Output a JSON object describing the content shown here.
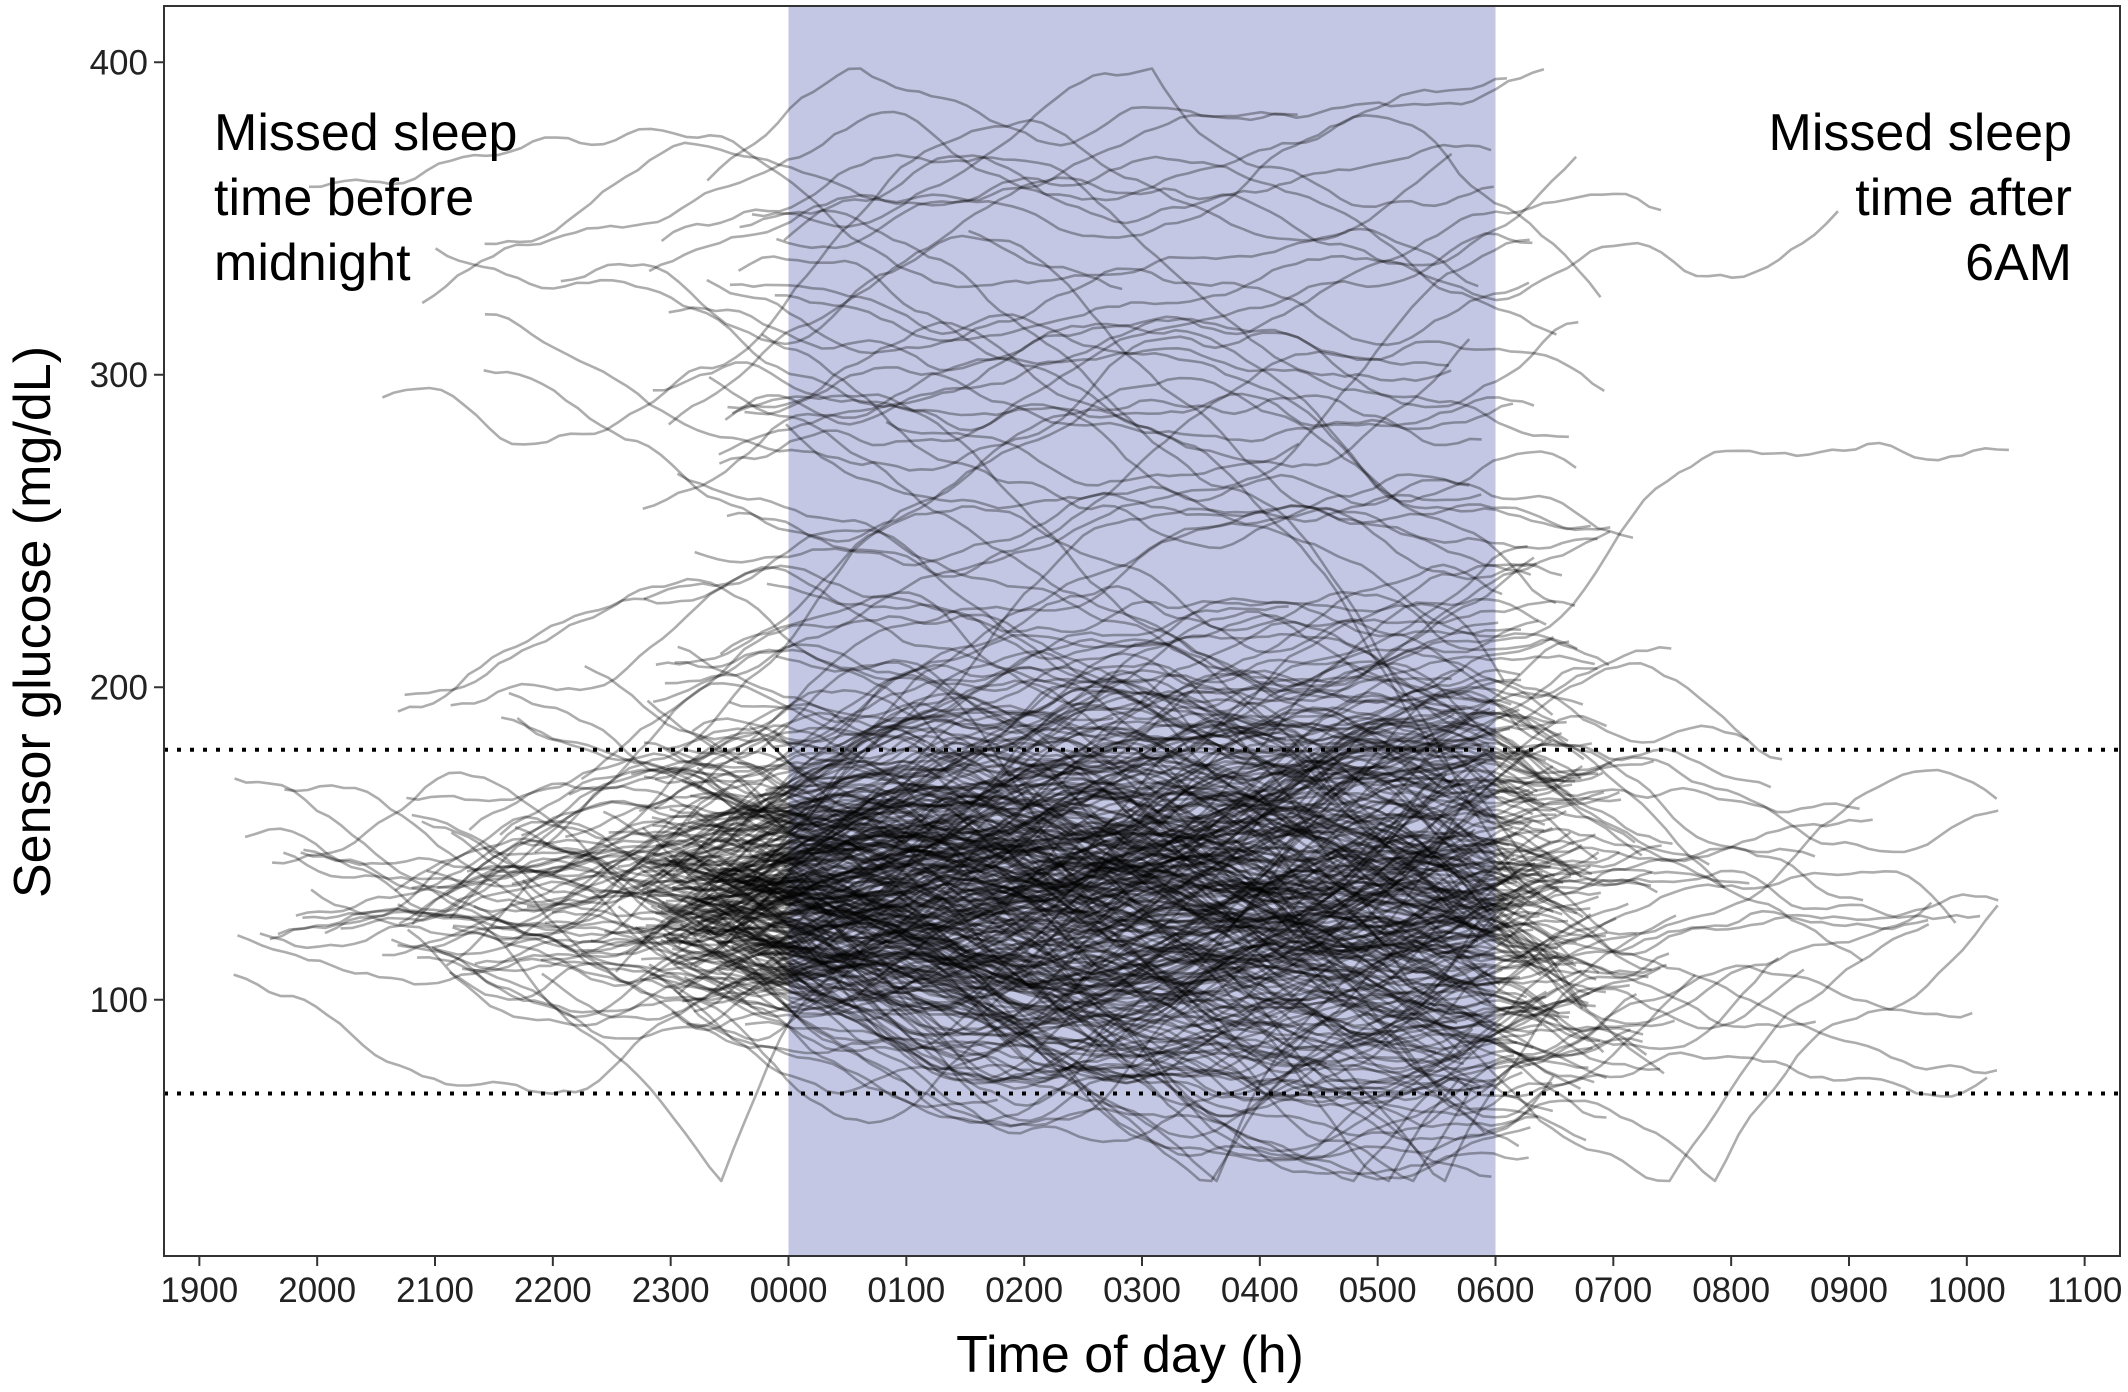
{
  "chart_data": {
    "type": "line",
    "xlabel": "Time of day (h)",
    "ylabel": "Sensor glucose (mg/dL)",
    "x_ticks": [
      {
        "hour": -5,
        "label": "1900"
      },
      {
        "hour": -4,
        "label": "2000"
      },
      {
        "hour": -3,
        "label": "2100"
      },
      {
        "hour": -2,
        "label": "2200"
      },
      {
        "hour": -1,
        "label": "2300"
      },
      {
        "hour": 0,
        "label": "0000"
      },
      {
        "hour": 1,
        "label": "0100"
      },
      {
        "hour": 2,
        "label": "0200"
      },
      {
        "hour": 3,
        "label": "0300"
      },
      {
        "hour": 4,
        "label": "0400"
      },
      {
        "hour": 5,
        "label": "0500"
      },
      {
        "hour": 6,
        "label": "0600"
      },
      {
        "hour": 7,
        "label": "0700"
      },
      {
        "hour": 8,
        "label": "0800"
      },
      {
        "hour": 9,
        "label": "0900"
      },
      {
        "hour": 10,
        "label": "1000"
      },
      {
        "hour": 11,
        "label": "1100"
      }
    ],
    "x_range_hours": [
      -5.3,
      11.3
    ],
    "y_ticks": [
      100,
      200,
      300,
      400
    ],
    "ylim": [
      18,
      418
    ],
    "grid": false,
    "sleep_window": {
      "start_hour": 0,
      "end_hour": 6,
      "color": "#c4c7e4"
    },
    "reference_lines": [
      70,
      180
    ],
    "annotations": [
      {
        "lines": [
          "Missed sleep",
          "time before",
          "midnight"
        ],
        "position": "top-left"
      },
      {
        "lines": [
          "Missed sleep",
          "time after",
          "6AM"
        ],
        "position": "top-right"
      }
    ],
    "series_description": "Hundreds of individual overnight CGM traces; density concentrated 70-180 mg/dL, sparse tails from ~40 to ~400 mg/dL",
    "colors": {
      "trace": "#000000",
      "sleep_tick_label": "#3b3f9a",
      "tick_label": "#222222"
    },
    "highlighted_tick_labels": [
      "0000",
      "0100",
      "0200",
      "0300",
      "0400",
      "0500",
      "0600"
    ]
  }
}
